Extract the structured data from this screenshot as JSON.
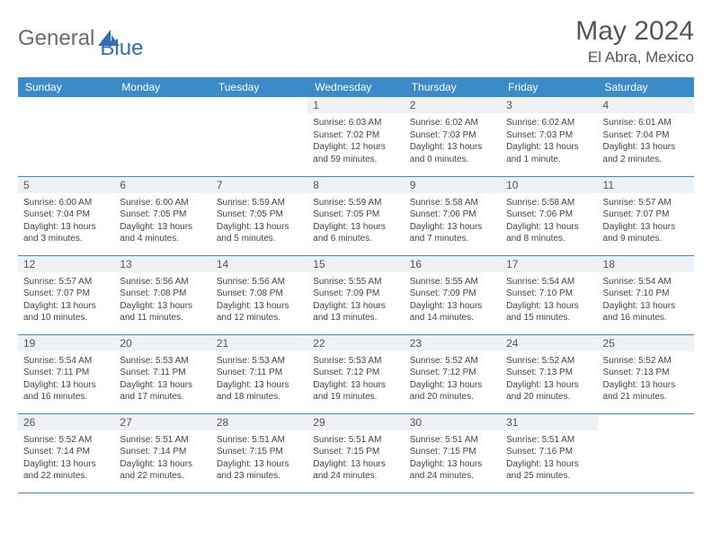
{
  "brand": {
    "part1": "General",
    "part2": "Blue"
  },
  "colors": {
    "header_bg": "#3b8bc9",
    "header_text": "#ffffff",
    "daynum_bg": "#eef2f5",
    "border": "#3b8bc9",
    "title": "#555555",
    "body_text": "#444444",
    "logo_gray": "#6b6b6b",
    "logo_blue": "#2f6fb3"
  },
  "title": "May 2024",
  "location": "El Abra, Mexico",
  "weekdays": [
    "Sunday",
    "Monday",
    "Tuesday",
    "Wednesday",
    "Thursday",
    "Friday",
    "Saturday"
  ],
  "weeks": [
    [
      null,
      null,
      null,
      {
        "n": "1",
        "sr": "6:03 AM",
        "ss": "7:02 PM",
        "dl": "12 hours and 59 minutes."
      },
      {
        "n": "2",
        "sr": "6:02 AM",
        "ss": "7:03 PM",
        "dl": "13 hours and 0 minutes."
      },
      {
        "n": "3",
        "sr": "6:02 AM",
        "ss": "7:03 PM",
        "dl": "13 hours and 1 minute."
      },
      {
        "n": "4",
        "sr": "6:01 AM",
        "ss": "7:04 PM",
        "dl": "13 hours and 2 minutes."
      }
    ],
    [
      {
        "n": "5",
        "sr": "6:00 AM",
        "ss": "7:04 PM",
        "dl": "13 hours and 3 minutes."
      },
      {
        "n": "6",
        "sr": "6:00 AM",
        "ss": "7:05 PM",
        "dl": "13 hours and 4 minutes."
      },
      {
        "n": "7",
        "sr": "5:59 AM",
        "ss": "7:05 PM",
        "dl": "13 hours and 5 minutes."
      },
      {
        "n": "8",
        "sr": "5:59 AM",
        "ss": "7:05 PM",
        "dl": "13 hours and 6 minutes."
      },
      {
        "n": "9",
        "sr": "5:58 AM",
        "ss": "7:06 PM",
        "dl": "13 hours and 7 minutes."
      },
      {
        "n": "10",
        "sr": "5:58 AM",
        "ss": "7:06 PM",
        "dl": "13 hours and 8 minutes."
      },
      {
        "n": "11",
        "sr": "5:57 AM",
        "ss": "7:07 PM",
        "dl": "13 hours and 9 minutes."
      }
    ],
    [
      {
        "n": "12",
        "sr": "5:57 AM",
        "ss": "7:07 PM",
        "dl": "13 hours and 10 minutes."
      },
      {
        "n": "13",
        "sr": "5:56 AM",
        "ss": "7:08 PM",
        "dl": "13 hours and 11 minutes."
      },
      {
        "n": "14",
        "sr": "5:56 AM",
        "ss": "7:08 PM",
        "dl": "13 hours and 12 minutes."
      },
      {
        "n": "15",
        "sr": "5:55 AM",
        "ss": "7:09 PM",
        "dl": "13 hours and 13 minutes."
      },
      {
        "n": "16",
        "sr": "5:55 AM",
        "ss": "7:09 PM",
        "dl": "13 hours and 14 minutes."
      },
      {
        "n": "17",
        "sr": "5:54 AM",
        "ss": "7:10 PM",
        "dl": "13 hours and 15 minutes."
      },
      {
        "n": "18",
        "sr": "5:54 AM",
        "ss": "7:10 PM",
        "dl": "13 hours and 16 minutes."
      }
    ],
    [
      {
        "n": "19",
        "sr": "5:54 AM",
        "ss": "7:11 PM",
        "dl": "13 hours and 16 minutes."
      },
      {
        "n": "20",
        "sr": "5:53 AM",
        "ss": "7:11 PM",
        "dl": "13 hours and 17 minutes."
      },
      {
        "n": "21",
        "sr": "5:53 AM",
        "ss": "7:11 PM",
        "dl": "13 hours and 18 minutes."
      },
      {
        "n": "22",
        "sr": "5:53 AM",
        "ss": "7:12 PM",
        "dl": "13 hours and 19 minutes."
      },
      {
        "n": "23",
        "sr": "5:52 AM",
        "ss": "7:12 PM",
        "dl": "13 hours and 20 minutes."
      },
      {
        "n": "24",
        "sr": "5:52 AM",
        "ss": "7:13 PM",
        "dl": "13 hours and 20 minutes."
      },
      {
        "n": "25",
        "sr": "5:52 AM",
        "ss": "7:13 PM",
        "dl": "13 hours and 21 minutes."
      }
    ],
    [
      {
        "n": "26",
        "sr": "5:52 AM",
        "ss": "7:14 PM",
        "dl": "13 hours and 22 minutes."
      },
      {
        "n": "27",
        "sr": "5:51 AM",
        "ss": "7:14 PM",
        "dl": "13 hours and 22 minutes."
      },
      {
        "n": "28",
        "sr": "5:51 AM",
        "ss": "7:15 PM",
        "dl": "13 hours and 23 minutes."
      },
      {
        "n": "29",
        "sr": "5:51 AM",
        "ss": "7:15 PM",
        "dl": "13 hours and 24 minutes."
      },
      {
        "n": "30",
        "sr": "5:51 AM",
        "ss": "7:15 PM",
        "dl": "13 hours and 24 minutes."
      },
      {
        "n": "31",
        "sr": "5:51 AM",
        "ss": "7:16 PM",
        "dl": "13 hours and 25 minutes."
      },
      null
    ]
  ],
  "labels": {
    "sunrise": "Sunrise: ",
    "sunset": "Sunset: ",
    "daylight": "Daylight: "
  }
}
